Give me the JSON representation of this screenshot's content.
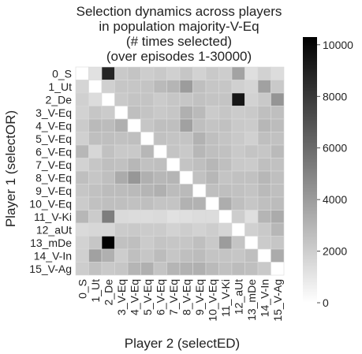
{
  "chart_data": {
    "type": "heatmap",
    "title_lines": [
      "Selection dynamics across players",
      "in population majority-V-Eq",
      "(# times selected)",
      "(over episodes 1-30000)"
    ],
    "xlabel": "Player 2 (selectED)",
    "ylabel": "Player 1 (selectOR)",
    "row_labels": [
      "0_S",
      "1_Ut",
      "2_De",
      "3_V-Eq",
      "4_V-Eq",
      "5_V-Eq",
      "6_V-Eq",
      "7_V-Eq",
      "8_V-Eq",
      "9_V-Eq",
      "10_V-Eq",
      "11_V-Ki",
      "12_aUt",
      "13_mDe",
      "14_V-In",
      "15_V-Ag"
    ],
    "col_labels": [
      "0_S",
      "1_Ut",
      "2_De",
      "3_V-Eq",
      "4_V-Eq",
      "5_V-Eq",
      "6_V-Eq",
      "7_V-Eq",
      "8_V-Eq",
      "9_V-Eq",
      "10_V-Eq",
      "11_V-Ki",
      "12_aUt",
      "13_mDe",
      "14_V-In",
      "15_V-Ag"
    ],
    "values": [
      [
        0,
        1200,
        8800,
        2200,
        2400,
        2000,
        2200,
        1900,
        2300,
        1800,
        2200,
        2000,
        3700,
        1300,
        1800,
        1400
      ],
      [
        1700,
        0,
        1900,
        2300,
        2300,
        2400,
        2800,
        3000,
        4000,
        2600,
        2300,
        2300,
        1900,
        1700,
        3800,
        2200
      ],
      [
        1900,
        1400,
        0,
        2200,
        2400,
        2400,
        2100,
        2300,
        2300,
        2500,
        2400,
        2400,
        9400,
        1800,
        2200,
        4300
      ],
      [
        1800,
        2300,
        2100,
        0,
        2600,
        2400,
        2200,
        2300,
        3200,
        2800,
        2100,
        2300,
        2100,
        2200,
        2600,
        2600
      ],
      [
        2100,
        2800,
        2700,
        3200,
        0,
        2300,
        2600,
        2600,
        3800,
        2600,
        2400,
        2500,
        2200,
        2100,
        2900,
        2700
      ],
      [
        1900,
        2600,
        2600,
        2500,
        2600,
        0,
        2500,
        2400,
        2400,
        3100,
        2600,
        2400,
        2200,
        1900,
        2600,
        2500
      ],
      [
        2900,
        1600,
        2500,
        2200,
        2200,
        2900,
        0,
        2400,
        2200,
        2900,
        2600,
        2500,
        2200,
        2400,
        2300,
        2800
      ],
      [
        1800,
        2300,
        2600,
        2500,
        2900,
        2500,
        2600,
        0,
        2400,
        2600,
        2900,
        2600,
        2200,
        2100,
        2600,
        2500
      ],
      [
        2600,
        2300,
        2600,
        3400,
        4200,
        3200,
        2900,
        3000,
        0,
        2500,
        2900,
        2400,
        2500,
        2500,
        2900,
        2600
      ],
      [
        2300,
        2500,
        2700,
        2700,
        2800,
        3000,
        3200,
        2700,
        2800,
        0,
        2600,
        2600,
        2500,
        2400,
        2800,
        2600
      ],
      [
        2100,
        2500,
        2600,
        2600,
        2500,
        2600,
        2400,
        2400,
        3100,
        3100,
        0,
        3300,
        2600,
        2300,
        2600,
        2700
      ],
      [
        2900,
        2100,
        5200,
        1500,
        1400,
        1400,
        1500,
        1200,
        1300,
        1400,
        1400,
        0,
        2000,
        1300,
        3000,
        3400
      ],
      [
        1500,
        1600,
        1600,
        2100,
        2200,
        2100,
        2100,
        1800,
        2000,
        1800,
        2000,
        1700,
        0,
        1900,
        2200,
        2900
      ],
      [
        1800,
        2300,
        10200,
        2500,
        2600,
        2100,
        2400,
        2300,
        2300,
        2600,
        2200,
        4000,
        2400,
        0,
        2100,
        2300
      ],
      [
        1900,
        3800,
        3200,
        2000,
        2600,
        2300,
        2700,
        2300,
        2600,
        2700,
        2400,
        2400,
        2300,
        2600,
        0,
        3400
      ],
      [
        2000,
        2500,
        2200,
        2300,
        3000,
        3200,
        2400,
        3000,
        3100,
        3200,
        2800,
        2500,
        2700,
        2600,
        2200,
        0
      ]
    ],
    "colorbar": {
      "min": 0,
      "max": 10300,
      "ticks": [
        0,
        2000,
        4000,
        6000,
        8000,
        10000
      ]
    },
    "colormap": "greys",
    "grid": true
  },
  "colors": {
    "low": "#ffffff",
    "high": "#000000",
    "cell_border": "#d9d9d9",
    "text": "#222222"
  }
}
